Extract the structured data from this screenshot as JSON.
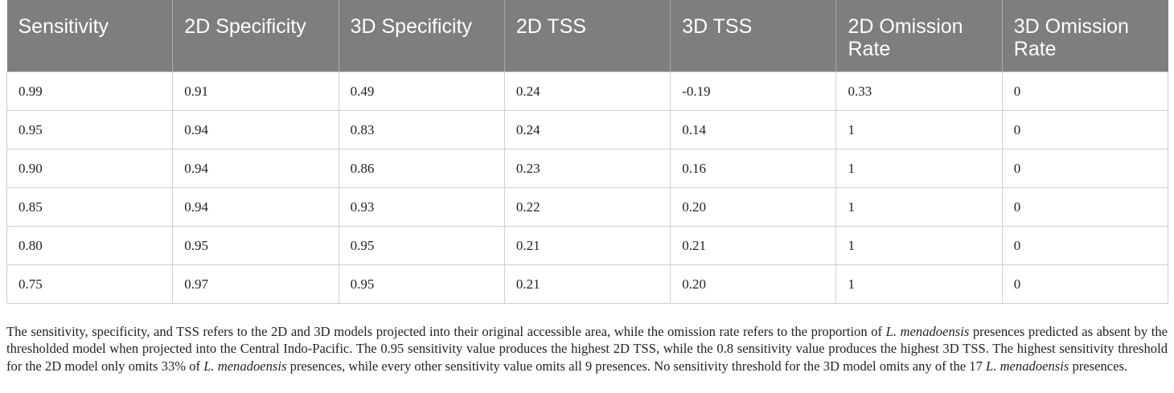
{
  "table": {
    "headers": [
      "Sensitivity",
      "2D Specificity",
      "3D Specificity",
      "2D TSS",
      "3D TSS",
      "2D Omission Rate",
      "3D Omission Rate"
    ],
    "rows": [
      [
        "0.99",
        "0.91",
        "0.49",
        "0.24",
        "-0.19",
        "0.33",
        "0"
      ],
      [
        "0.95",
        "0.94",
        "0.83",
        "0.24",
        "0.14",
        "1",
        "0"
      ],
      [
        "0.90",
        "0.94",
        "0.86",
        "0.23",
        "0.16",
        "1",
        "0"
      ],
      [
        "0.85",
        "0.94",
        "0.93",
        "0.22",
        "0.20",
        "1",
        "0"
      ],
      [
        "0.80",
        "0.95",
        "0.95",
        "0.21",
        "0.21",
        "1",
        "0"
      ],
      [
        "0.75",
        "0.97",
        "0.95",
        "0.21",
        "0.20",
        "1",
        "0"
      ]
    ]
  },
  "caption": {
    "s1": "The sensitivity, specificity, and TSS refers to the 2D and 3D models projected into their original accessible area, while the omission rate refers to the proportion of ",
    "species1": "L. menadoensis",
    "s2": " presences predicted as absent by the thresholded model when projected into the Central Indo-Pacific. The 0.95 sensitivity value produces the highest 2D TSS, while the 0.8 sensitivity value produces the highest 3D TSS. The highest sensitivity threshold for the 2D model only omits 33% of ",
    "species2": "L. menadoensis",
    "s3": " presences, while every other sensitivity value omits all 9 presences. No sensitivity threshold for the 3D model omits any of the 17 ",
    "species3": "L. menadoensis",
    "s4": " presences."
  }
}
